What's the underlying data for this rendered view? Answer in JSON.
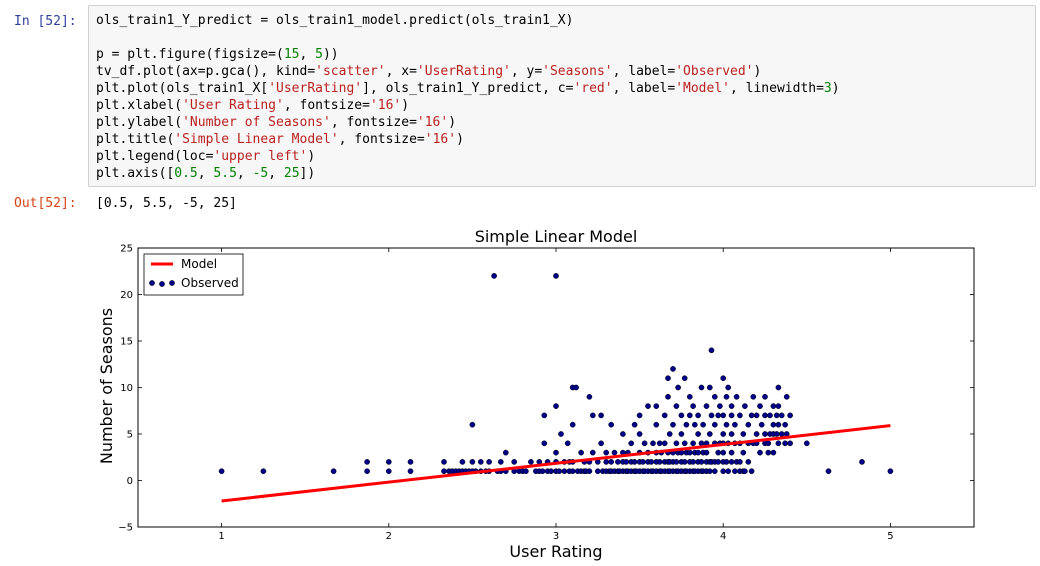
{
  "cell": {
    "in_prompt": "In [52]:",
    "out_prompt": "Out[52]:",
    "code_lines": [
      [
        {
          "t": "ols_train1_Y_predict = ols_train1_model.predict(ols_train1_X)"
        }
      ],
      [
        {
          "t": ""
        }
      ],
      [
        {
          "t": "p = plt.figure(figsize=("
        },
        {
          "t": "15",
          "c": "num"
        },
        {
          "t": ", "
        },
        {
          "t": "5",
          "c": "num"
        },
        {
          "t": "))"
        }
      ],
      [
        {
          "t": "tv_df.plot(ax=p.gca(), kind="
        },
        {
          "t": "'scatter'",
          "c": "str"
        },
        {
          "t": ", x="
        },
        {
          "t": "'UserRating'",
          "c": "str"
        },
        {
          "t": ", y="
        },
        {
          "t": "'Seasons'",
          "c": "str"
        },
        {
          "t": ", label="
        },
        {
          "t": "'Observed'",
          "c": "str"
        },
        {
          "t": ")"
        }
      ],
      [
        {
          "t": "plt.plot(ols_train1_X["
        },
        {
          "t": "'UserRating'",
          "c": "str"
        },
        {
          "t": "], ols_train1_Y_predict, c="
        },
        {
          "t": "'red'",
          "c": "str"
        },
        {
          "t": ", label="
        },
        {
          "t": "'Model'",
          "c": "str"
        },
        {
          "t": ", linewidth="
        },
        {
          "t": "3",
          "c": "num"
        },
        {
          "t": ")"
        }
      ],
      [
        {
          "t": "plt.xlabel("
        },
        {
          "t": "'User Rating'",
          "c": "str"
        },
        {
          "t": ", fontsize="
        },
        {
          "t": "'16'",
          "c": "str"
        },
        {
          "t": ")"
        }
      ],
      [
        {
          "t": "plt.ylabel("
        },
        {
          "t": "'Number of Seasons'",
          "c": "str"
        },
        {
          "t": ", fontsize="
        },
        {
          "t": "'16'",
          "c": "str"
        },
        {
          "t": ")"
        }
      ],
      [
        {
          "t": "plt.title("
        },
        {
          "t": "'Simple Linear Model'",
          "c": "str"
        },
        {
          "t": ", fontsize="
        },
        {
          "t": "'16'",
          "c": "str"
        },
        {
          "t": ")"
        }
      ],
      [
        {
          "t": "plt.legend(loc="
        },
        {
          "t": "'upper left'",
          "c": "str"
        },
        {
          "t": ")"
        }
      ],
      [
        {
          "t": "plt.axis(["
        },
        {
          "t": "0.5",
          "c": "num"
        },
        {
          "t": ", "
        },
        {
          "t": "5.5",
          "c": "num"
        },
        {
          "t": ", "
        },
        {
          "t": "-5",
          "c": "num"
        },
        {
          "t": ", "
        },
        {
          "t": "25",
          "c": "num"
        },
        {
          "t": "])"
        }
      ]
    ],
    "output_text": "[0.5, 5.5, -5, 25]"
  },
  "colors": {
    "in_prompt": "#303F9F",
    "out_prompt": "#D84315",
    "string": "#BA2121",
    "number": "#008000",
    "model_line": "#ff0000",
    "point_fill": "#00008b"
  },
  "chart_data": {
    "type": "scatter",
    "title": "Simple Linear Model",
    "xlabel": "User Rating",
    "ylabel": "Number of Seasons",
    "xlim": [
      0.5,
      5.5
    ],
    "ylim": [
      -5,
      25
    ],
    "xticks": [
      1,
      2,
      3,
      4,
      5
    ],
    "yticks": [
      -5,
      0,
      5,
      10,
      15,
      20,
      25
    ],
    "legend_position": "upper left",
    "legend": [
      "Model",
      "Observed"
    ],
    "model": {
      "name": "Model",
      "x": [
        1,
        5
      ],
      "y": [
        -2.2,
        5.9
      ]
    },
    "observed": {
      "name": "Observed",
      "points": [
        [
          1.0,
          1
        ],
        [
          1.25,
          1
        ],
        [
          1.67,
          1
        ],
        [
          1.87,
          1
        ],
        [
          1.87,
          2
        ],
        [
          2.0,
          1
        ],
        [
          2.0,
          2
        ],
        [
          2.13,
          1
        ],
        [
          2.13,
          2
        ],
        [
          2.33,
          1
        ],
        [
          2.33,
          2
        ],
        [
          2.36,
          1
        ],
        [
          2.38,
          1
        ],
        [
          2.4,
          1
        ],
        [
          2.42,
          1
        ],
        [
          2.44,
          1
        ],
        [
          2.44,
          2
        ],
        [
          2.46,
          1
        ],
        [
          2.48,
          1
        ],
        [
          2.5,
          1
        ],
        [
          2.5,
          2
        ],
        [
          2.52,
          1
        ],
        [
          2.5,
          6
        ],
        [
          2.55,
          1
        ],
        [
          2.55,
          2
        ],
        [
          2.58,
          1
        ],
        [
          2.6,
          1
        ],
        [
          2.6,
          2
        ],
        [
          2.63,
          22
        ],
        [
          2.65,
          1
        ],
        [
          2.67,
          1
        ],
        [
          2.67,
          2
        ],
        [
          2.7,
          1
        ],
        [
          2.7,
          3
        ],
        [
          2.75,
          1
        ],
        [
          2.75,
          2
        ],
        [
          2.78,
          1
        ],
        [
          2.8,
          1
        ],
        [
          2.82,
          1
        ],
        [
          2.85,
          2
        ],
        [
          2.88,
          1
        ],
        [
          2.9,
          1
        ],
        [
          2.9,
          2
        ],
        [
          2.92,
          1
        ],
        [
          2.93,
          7
        ],
        [
          2.93,
          4
        ],
        [
          2.95,
          1
        ],
        [
          2.95,
          2
        ],
        [
          2.97,
          1
        ],
        [
          3.0,
          1
        ],
        [
          3.0,
          2
        ],
        [
          3.0,
          3
        ],
        [
          3.0,
          8
        ],
        [
          3.0,
          22
        ],
        [
          3.02,
          1
        ],
        [
          3.03,
          5
        ],
        [
          3.05,
          1
        ],
        [
          3.05,
          2
        ],
        [
          3.07,
          4
        ],
        [
          3.08,
          1
        ],
        [
          3.08,
          2
        ],
        [
          3.1,
          1
        ],
        [
          3.1,
          2
        ],
        [
          3.1,
          6
        ],
        [
          3.1,
          10
        ],
        [
          3.12,
          10
        ],
        [
          3.13,
          1
        ],
        [
          3.15,
          1
        ],
        [
          3.15,
          3
        ],
        [
          3.17,
          1
        ],
        [
          3.17,
          2
        ],
        [
          3.18,
          1
        ],
        [
          3.2,
          1
        ],
        [
          3.2,
          2
        ],
        [
          3.2,
          9
        ],
        [
          3.22,
          3
        ],
        [
          3.22,
          7
        ],
        [
          3.25,
          1
        ],
        [
          3.25,
          2
        ],
        [
          3.27,
          7
        ],
        [
          3.27,
          4
        ],
        [
          3.28,
          1
        ],
        [
          3.3,
          1
        ],
        [
          3.3,
          2
        ],
        [
          3.3,
          3
        ],
        [
          3.32,
          1
        ],
        [
          3.33,
          1
        ],
        [
          3.33,
          2
        ],
        [
          3.33,
          6
        ],
        [
          3.35,
          1
        ],
        [
          3.35,
          3
        ],
        [
          3.37,
          1
        ],
        [
          3.37,
          2
        ],
        [
          3.38,
          1
        ],
        [
          3.4,
          1
        ],
        [
          3.4,
          2
        ],
        [
          3.4,
          3
        ],
        [
          3.4,
          5
        ],
        [
          3.42,
          1
        ],
        [
          3.42,
          2
        ],
        [
          3.43,
          1
        ],
        [
          3.43,
          3
        ],
        [
          3.45,
          1
        ],
        [
          3.45,
          2
        ],
        [
          3.45,
          4
        ],
        [
          3.47,
          1
        ],
        [
          3.47,
          2
        ],
        [
          3.47,
          6
        ],
        [
          3.48,
          1
        ],
        [
          3.5,
          1
        ],
        [
          3.5,
          2
        ],
        [
          3.5,
          3
        ],
        [
          3.5,
          7
        ],
        [
          3.5,
          5
        ],
        [
          3.52,
          1
        ],
        [
          3.52,
          2
        ],
        [
          3.53,
          1
        ],
        [
          3.53,
          4
        ],
        [
          3.55,
          1
        ],
        [
          3.55,
          2
        ],
        [
          3.55,
          3
        ],
        [
          3.55,
          8
        ],
        [
          3.57,
          1
        ],
        [
          3.57,
          2
        ],
        [
          3.58,
          1
        ],
        [
          3.58,
          4
        ],
        [
          3.6,
          1
        ],
        [
          3.6,
          2
        ],
        [
          3.6,
          3
        ],
        [
          3.6,
          8
        ],
        [
          3.6,
          6
        ],
        [
          3.62,
          1
        ],
        [
          3.62,
          2
        ],
        [
          3.62,
          4
        ],
        [
          3.63,
          1
        ],
        [
          3.63,
          3
        ],
        [
          3.65,
          1
        ],
        [
          3.65,
          2
        ],
        [
          3.65,
          4
        ],
        [
          3.65,
          7
        ],
        [
          3.67,
          1
        ],
        [
          3.67,
          2
        ],
        [
          3.67,
          3
        ],
        [
          3.67,
          11
        ],
        [
          3.67,
          9
        ],
        [
          3.68,
          1
        ],
        [
          3.68,
          2
        ],
        [
          3.68,
          5
        ],
        [
          3.7,
          1
        ],
        [
          3.7,
          2
        ],
        [
          3.7,
          3
        ],
        [
          3.7,
          12
        ],
        [
          3.7,
          6
        ],
        [
          3.72,
          1
        ],
        [
          3.72,
          2
        ],
        [
          3.72,
          4
        ],
        [
          3.72,
          8
        ],
        [
          3.73,
          1
        ],
        [
          3.73,
          3
        ],
        [
          3.73,
          10
        ],
        [
          3.75,
          1
        ],
        [
          3.75,
          2
        ],
        [
          3.75,
          3
        ],
        [
          3.75,
          7
        ],
        [
          3.75,
          5
        ],
        [
          3.77,
          1
        ],
        [
          3.77,
          2
        ],
        [
          3.77,
          4
        ],
        [
          3.77,
          11
        ],
        [
          3.78,
          1
        ],
        [
          3.78,
          3
        ],
        [
          3.78,
          6
        ],
        [
          3.8,
          1
        ],
        [
          3.8,
          2
        ],
        [
          3.8,
          3
        ],
        [
          3.8,
          7
        ],
        [
          3.8,
          9
        ],
        [
          3.82,
          1
        ],
        [
          3.82,
          2
        ],
        [
          3.82,
          4
        ],
        [
          3.82,
          8
        ],
        [
          3.83,
          1
        ],
        [
          3.83,
          3
        ],
        [
          3.83,
          6
        ],
        [
          3.85,
          1
        ],
        [
          3.85,
          2
        ],
        [
          3.85,
          3
        ],
        [
          3.85,
          5
        ],
        [
          3.85,
          7
        ],
        [
          3.87,
          1
        ],
        [
          3.87,
          2
        ],
        [
          3.87,
          4
        ],
        [
          3.87,
          10
        ],
        [
          3.88,
          1
        ],
        [
          3.88,
          3
        ],
        [
          3.88,
          6
        ],
        [
          3.9,
          1
        ],
        [
          3.9,
          2
        ],
        [
          3.9,
          3
        ],
        [
          3.9,
          4
        ],
        [
          3.9,
          8
        ],
        [
          3.92,
          1
        ],
        [
          3.92,
          2
        ],
        [
          3.92,
          5
        ],
        [
          3.92,
          10
        ],
        [
          3.93,
          2
        ],
        [
          3.93,
          14
        ],
        [
          3.93,
          7
        ],
        [
          3.95,
          1
        ],
        [
          3.95,
          2
        ],
        [
          3.95,
          4
        ],
        [
          3.95,
          6
        ],
        [
          3.95,
          9
        ],
        [
          3.97,
          2
        ],
        [
          3.97,
          3
        ],
        [
          3.97,
          7
        ],
        [
          3.98,
          4
        ],
        [
          3.98,
          8
        ],
        [
          4.0,
          1
        ],
        [
          4.0,
          2
        ],
        [
          4.0,
          3
        ],
        [
          4.0,
          4
        ],
        [
          4.0,
          5
        ],
        [
          4.0,
          7
        ],
        [
          4.0,
          11
        ],
        [
          4.02,
          2
        ],
        [
          4.02,
          6
        ],
        [
          4.02,
          9
        ],
        [
          4.03,
          1
        ],
        [
          4.03,
          4
        ],
        [
          4.03,
          10
        ],
        [
          4.05,
          2
        ],
        [
          4.05,
          3
        ],
        [
          4.05,
          5
        ],
        [
          4.05,
          7
        ],
        [
          4.05,
          8
        ],
        [
          4.07,
          1
        ],
        [
          4.07,
          4
        ],
        [
          4.07,
          6
        ],
        [
          4.08,
          2
        ],
        [
          4.08,
          9
        ],
        [
          4.1,
          1
        ],
        [
          4.1,
          2
        ],
        [
          4.1,
          4
        ],
        [
          4.1,
          7
        ],
        [
          4.12,
          1
        ],
        [
          4.12,
          3
        ],
        [
          4.12,
          5
        ],
        [
          4.13,
          1
        ],
        [
          4.13,
          8
        ],
        [
          4.15,
          2
        ],
        [
          4.15,
          4
        ],
        [
          4.15,
          6
        ],
        [
          4.17,
          1
        ],
        [
          4.17,
          7
        ],
        [
          4.18,
          4
        ],
        [
          4.18,
          9
        ],
        [
          4.2,
          4
        ],
        [
          4.2,
          5
        ],
        [
          4.2,
          7
        ],
        [
          4.22,
          3
        ],
        [
          4.22,
          8
        ],
        [
          4.23,
          6
        ],
        [
          4.25,
          4
        ],
        [
          4.25,
          5
        ],
        [
          4.25,
          7
        ],
        [
          4.25,
          9
        ],
        [
          4.27,
          3
        ],
        [
          4.27,
          4
        ],
        [
          4.28,
          5
        ],
        [
          4.28,
          7
        ],
        [
          4.3,
          3
        ],
        [
          4.3,
          5
        ],
        [
          4.3,
          6
        ],
        [
          4.3,
          8
        ],
        [
          4.32,
          5
        ],
        [
          4.32,
          7
        ],
        [
          4.33,
          4
        ],
        [
          4.33,
          6
        ],
        [
          4.33,
          8
        ],
        [
          4.33,
          10
        ],
        [
          4.35,
          5
        ],
        [
          4.35,
          7
        ],
        [
          4.37,
          4
        ],
        [
          4.37,
          6
        ],
        [
          4.38,
          5
        ],
        [
          4.38,
          9
        ],
        [
          4.4,
          4
        ],
        [
          4.4,
          7
        ],
        [
          4.5,
          4
        ],
        [
          4.63,
          1
        ],
        [
          4.83,
          2
        ],
        [
          5.0,
          1
        ]
      ]
    }
  }
}
